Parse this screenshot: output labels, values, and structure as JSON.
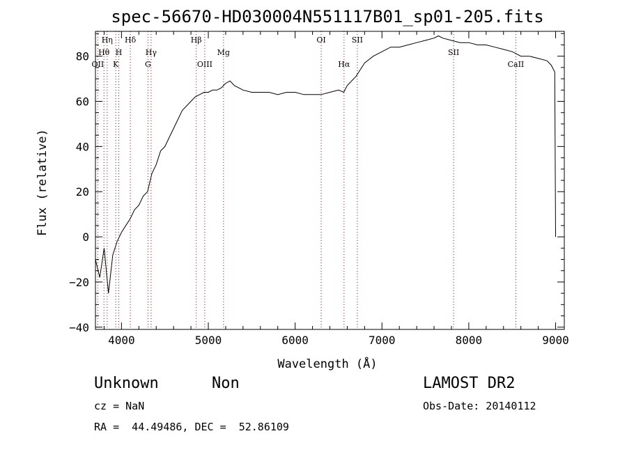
{
  "chart_data": {
    "type": "line",
    "title": "spec-56670-HD030004N551117B01_sp01-205.fits",
    "xlabel": "Wavelength (Å)",
    "ylabel": "Flux (relative)",
    "xlim": [
      3700,
      9100
    ],
    "ylim": [
      -41,
      91
    ],
    "x_ticks": [
      4000,
      5000,
      6000,
      7000,
      8000,
      9000
    ],
    "x_tick_labels": [
      "4000",
      "5000",
      "6000",
      "7000",
      "8000",
      "9000"
    ],
    "y_ticks": [
      -40,
      -20,
      0,
      20,
      40,
      60,
      80
    ],
    "y_tick_labels": [
      "−40",
      "−20",
      "0",
      "20",
      "40",
      "60",
      "80"
    ],
    "grid": false,
    "series": [
      {
        "x": [
          3700,
          3750,
          3800,
          3850,
          3900,
          3950,
          4000,
          4050,
          4100,
          4150,
          4200,
          4250,
          4300,
          4350,
          4400,
          4450,
          4500,
          4550,
          4600,
          4650,
          4700,
          4750,
          4800,
          4850,
          4900,
          4950,
          5000,
          5050,
          5100,
          5150,
          5200,
          5250,
          5300,
          5400,
          5500,
          5600,
          5700,
          5800,
          5900,
          6000,
          6100,
          6200,
          6300,
          6400,
          6500,
          6560,
          6600,
          6700,
          6800,
          6900,
          7000,
          7100,
          7200,
          7300,
          7400,
          7500,
          7600,
          7650,
          7700,
          7800,
          7900,
          8000,
          8100,
          8200,
          8300,
          8400,
          8500,
          8550,
          8600,
          8700,
          8800,
          8900,
          8950,
          8990,
          9000
        ],
        "y": [
          -10,
          -18,
          -5,
          -25,
          -8,
          -2,
          2,
          5,
          8,
          12,
          14,
          18,
          20,
          28,
          32,
          38,
          40,
          44,
          48,
          52,
          56,
          58,
          60,
          62,
          63,
          64,
          64,
          65,
          65,
          66,
          68,
          69,
          67,
          65,
          64,
          64,
          64,
          63,
          64,
          64,
          63,
          63,
          63,
          64,
          65,
          64,
          67,
          71,
          77,
          80,
          82,
          84,
          84,
          85,
          86,
          87,
          88,
          89,
          88,
          87,
          86,
          86,
          85,
          85,
          84,
          83,
          82,
          81,
          80,
          80,
          79,
          78,
          76,
          73,
          0
        ]
      }
    ],
    "line_annotations": [
      {
        "label": "OII",
        "wavelength": 3727,
        "row": "low"
      },
      {
        "label": "Hθ",
        "wavelength": 3798,
        "row": "mid"
      },
      {
        "label": "Hη",
        "wavelength": 3835,
        "row": "high"
      },
      {
        "label": "K",
        "wavelength": 3934,
        "row": "low"
      },
      {
        "label": "H",
        "wavelength": 3969,
        "row": "mid"
      },
      {
        "label": "Hδ",
        "wavelength": 4102,
        "row": "high"
      },
      {
        "label": "G",
        "wavelength": 4305,
        "row": "low"
      },
      {
        "label": "Hγ",
        "wavelength": 4341,
        "row": "mid"
      },
      {
        "label": "Hβ",
        "wavelength": 4861,
        "row": "high"
      },
      {
        "label": "OIII",
        "wavelength": 4959,
        "row": "low"
      },
      {
        "label": "Mg",
        "wavelength": 5175,
        "row": "mid"
      },
      {
        "label": "OI",
        "wavelength": 6300,
        "row": "high"
      },
      {
        "label": "Hα",
        "wavelength": 6563,
        "row": "low"
      },
      {
        "label": "SII",
        "wavelength": 6716,
        "row": "high"
      },
      {
        "label": "SII",
        "wavelength": 7825,
        "row": "mid"
      },
      {
        "label": "CaII",
        "wavelength": 8542,
        "row": "low"
      }
    ],
    "line_color": "#000000",
    "annotation_color": "#b00000"
  },
  "info": {
    "class": "Unknown",
    "subclass": "Non",
    "cz": "cz = NaN",
    "radec": "RA =  44.49486, DEC =  52.86109",
    "survey": "LAMOST DR2",
    "obsdate": "Obs-Date: 20140112"
  }
}
